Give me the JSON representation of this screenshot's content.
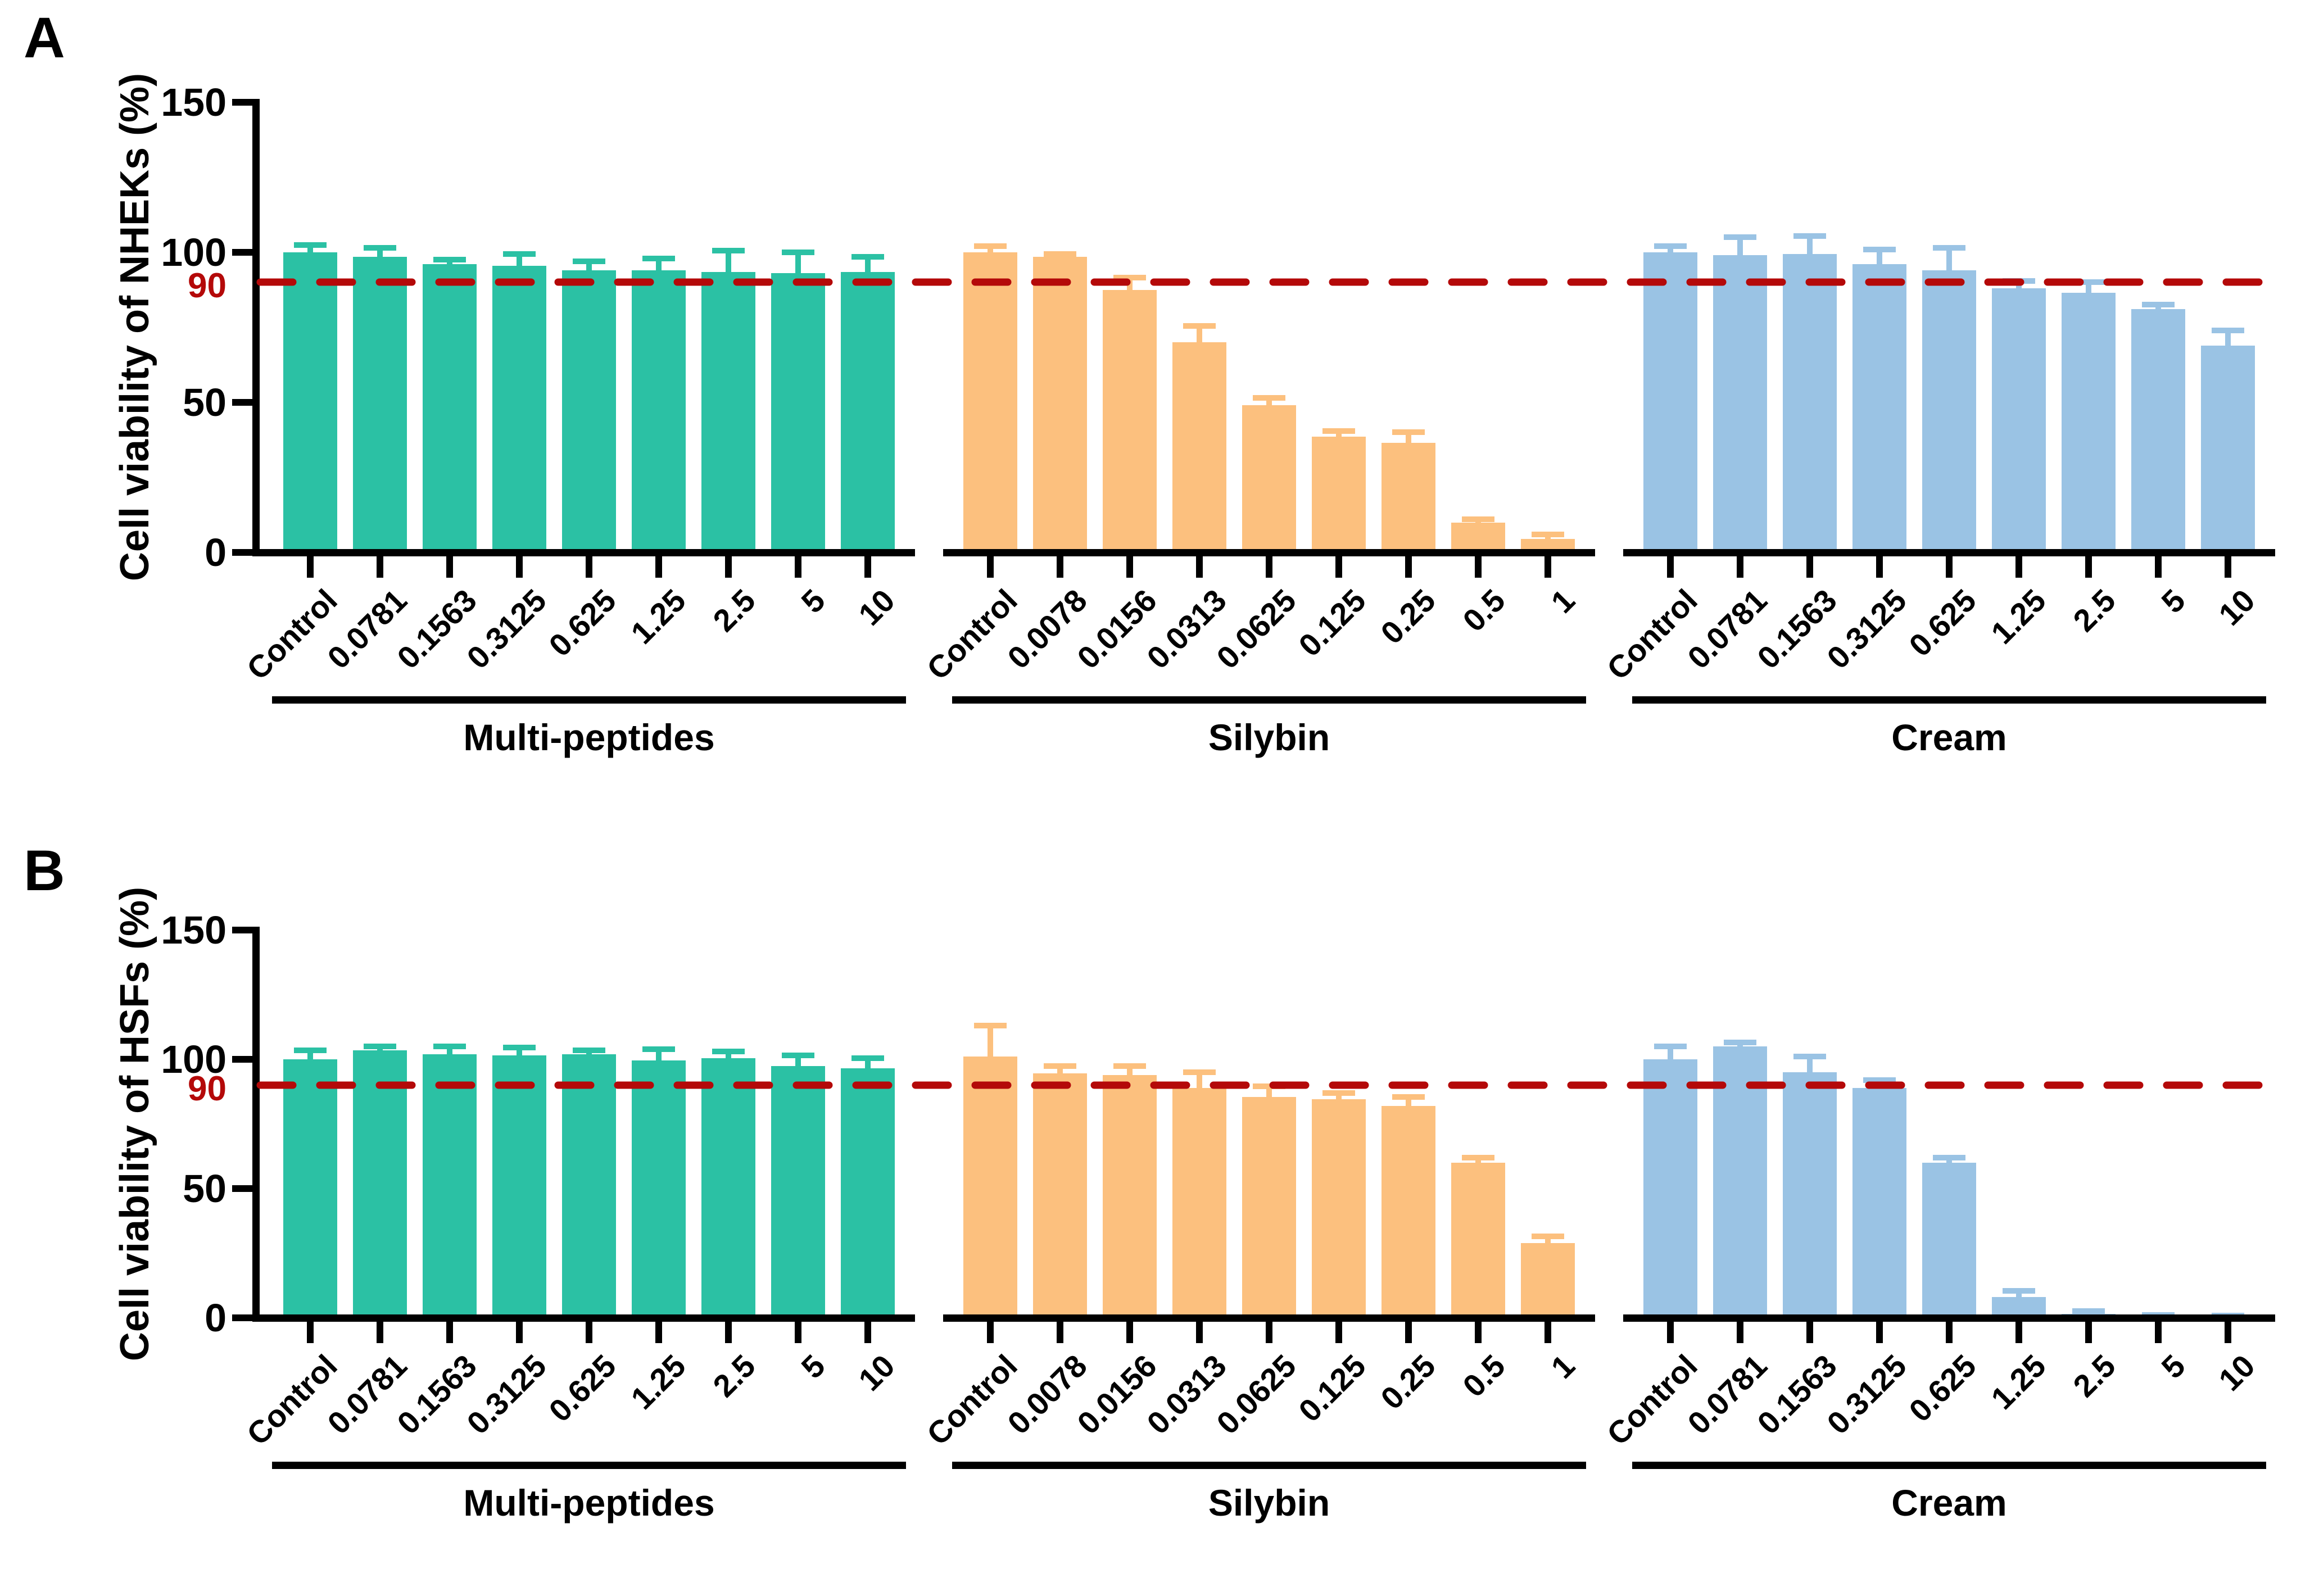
{
  "chart_data": [
    {
      "type": "bar",
      "panel": "A",
      "ylabel": "Cell viability of NHEKs (%)",
      "ylim": [
        0,
        150
      ],
      "yticks": [
        0,
        50,
        100,
        150
      ],
      "grid": false,
      "legend": null,
      "threshold_line": {
        "value": 90,
        "label": "90",
        "style": "dashed",
        "color": "#B40909"
      },
      "groups": [
        {
          "name": "Multi-peptides",
          "color": "#2BC1A4",
          "categories": [
            "Control",
            "0.0781",
            "0.1563",
            "0.3125",
            "0.625",
            "1.25",
            "2.5",
            "5",
            "10"
          ],
          "values": [
            100,
            98.5,
            96,
            95.5,
            94,
            94,
            93.5,
            93,
            93.5
          ],
          "errors": [
            2.5,
            3,
            1.5,
            4,
            3,
            4,
            7,
            7,
            5
          ]
        },
        {
          "name": "Silybin",
          "color": "#FCC07E",
          "categories": [
            "Control",
            "0.0078",
            "0.0156",
            "0.0313",
            "0.0625",
            "0.125",
            "0.25",
            "0.5",
            "1"
          ],
          "values": [
            100,
            98.5,
            87.5,
            70,
            49,
            38.5,
            36.5,
            10,
            4.5
          ],
          "errors": [
            2,
            1,
            4,
            5.5,
            2.5,
            2,
            3.5,
            1,
            1.5
          ]
        },
        {
          "name": "Cream",
          "color": "#9AC3E4",
          "categories": [
            "Control",
            "0.0781",
            "0.1563",
            "0.3125",
            "0.625",
            "1.25",
            "2.5",
            "5",
            "10"
          ],
          "values": [
            100,
            99,
            99.5,
            96,
            94,
            88,
            86.5,
            81,
            69
          ],
          "errors": [
            2,
            6,
            6,
            5,
            7.5,
            2.5,
            3.5,
            1.5,
            5
          ]
        }
      ]
    },
    {
      "type": "bar",
      "panel": "B",
      "ylabel": "Cell viability of HSFs (%)",
      "ylim": [
        0,
        150
      ],
      "yticks": [
        0,
        50,
        100,
        150
      ],
      "grid": false,
      "legend": null,
      "threshold_line": {
        "value": 90,
        "label": "90",
        "style": "dashed",
        "color": "#B40909"
      },
      "groups": [
        {
          "name": "Multi-peptides",
          "color": "#2BC1A4",
          "categories": [
            "Control",
            "0.0781",
            "0.1563",
            "0.3125",
            "0.625",
            "1.25",
            "2.5",
            "5",
            "10"
          ],
          "values": [
            100,
            103.5,
            102,
            101.5,
            102,
            99.5,
            100.5,
            97.5,
            96.5
          ],
          "errors": [
            3.5,
            1.5,
            3,
            3,
            1.5,
            4.5,
            2.5,
            4,
            4
          ]
        },
        {
          "name": "Silybin",
          "color": "#FCC07E",
          "categories": [
            "Control",
            "0.0078",
            "0.0156",
            "0.0313",
            "0.0625",
            "0.125",
            "0.25",
            "0.5",
            "1"
          ],
          "values": [
            101,
            94.5,
            94,
            89,
            85.5,
            84.5,
            82,
            60,
            29
          ],
          "errors": [
            12,
            3,
            3.5,
            6,
            4,
            2.5,
            3.5,
            2,
            2.5
          ]
        },
        {
          "name": "Cream",
          "color": "#9AC3E4",
          "categories": [
            "Control",
            "0.0781",
            "0.1563",
            "0.3125",
            "0.625",
            "1.25",
            "2.5",
            "5",
            "10"
          ],
          "values": [
            100,
            105,
            95,
            89,
            60,
            8,
            1.5,
            0.6,
            0.5
          ],
          "errors": [
            5,
            1.5,
            6,
            3,
            2,
            2.5,
            1.2,
            0.4,
            0.3
          ]
        }
      ]
    }
  ]
}
